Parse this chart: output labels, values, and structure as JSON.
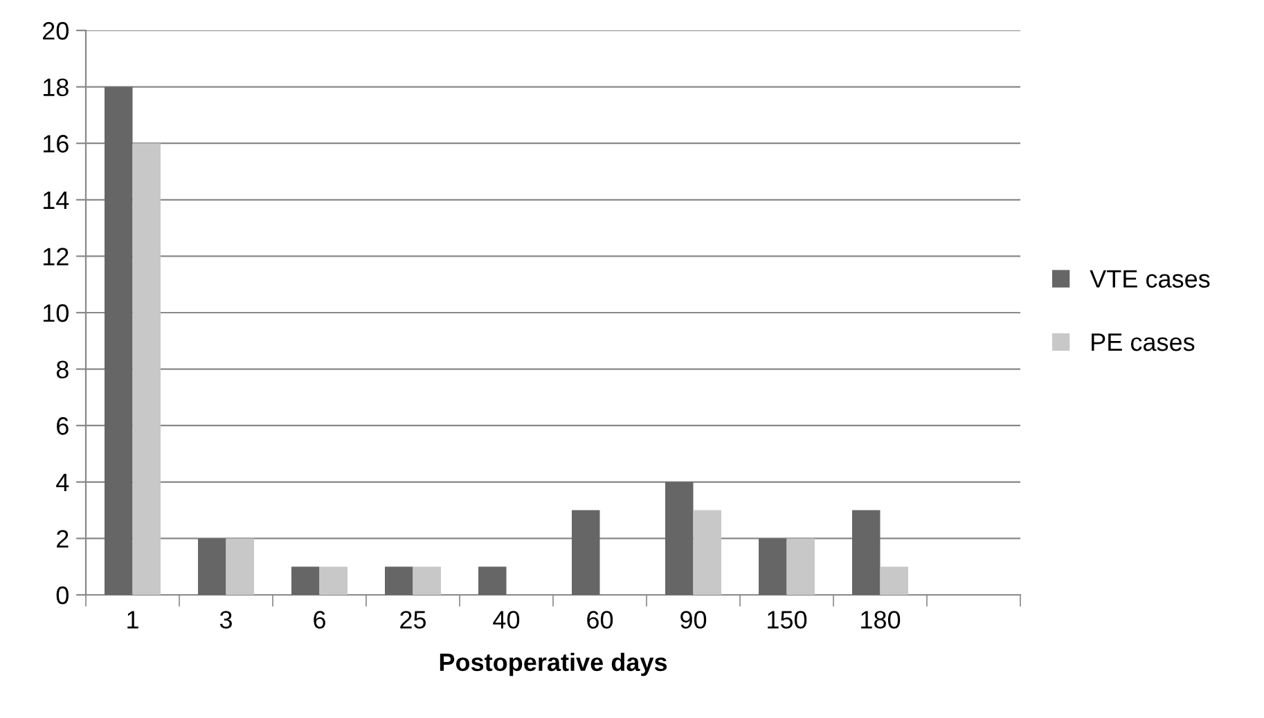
{
  "chart_data": {
    "type": "bar",
    "xlabel": "Postoperative days",
    "categories": [
      "1",
      "3",
      "6",
      "25",
      "40",
      "60",
      "90",
      "150",
      "180",
      null
    ],
    "series": [
      {
        "name": "VTE cases",
        "color": "#666666",
        "values": [
          18,
          2,
          1,
          1,
          1,
          3,
          4,
          2,
          3,
          null
        ]
      },
      {
        "name": "PE cases",
        "color": "#c8c8c8",
        "values": [
          16,
          2,
          1,
          1,
          0,
          0,
          3,
          2,
          1,
          null
        ]
      }
    ],
    "ylim": [
      0,
      20
    ],
    "yticks": [
      0,
      2,
      4,
      6,
      8,
      10,
      12,
      14,
      16,
      18,
      20
    ],
    "grid": "y",
    "legend": "right"
  }
}
